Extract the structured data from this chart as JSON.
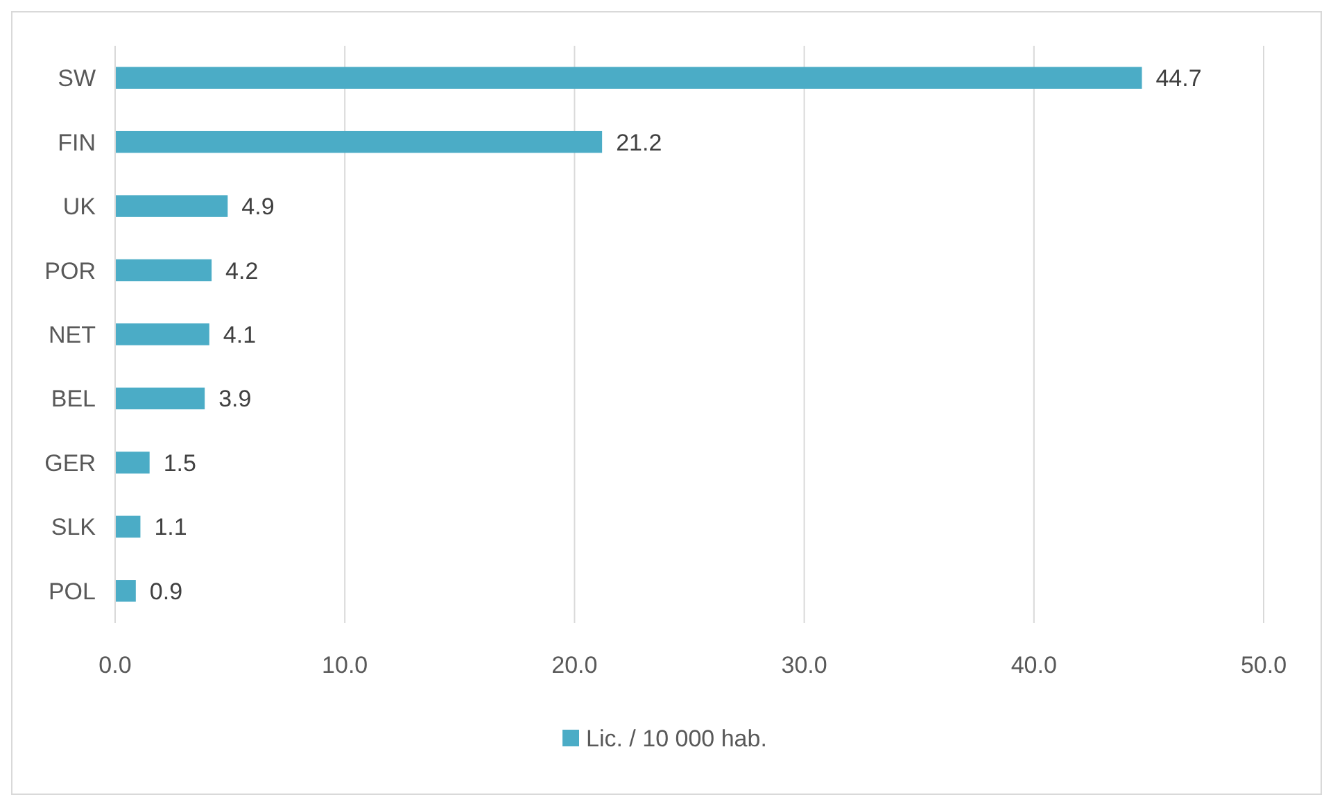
{
  "chart_data": {
    "type": "bar",
    "orientation": "horizontal",
    "categories": [
      "SW",
      "FIN",
      "UK",
      "POR",
      "NET",
      "BEL",
      "GER",
      "SLK",
      "POL"
    ],
    "series": [
      {
        "name": "Lic. / 10 000 hab.",
        "color": "#4bacc6",
        "values": [
          44.7,
          21.2,
          4.9,
          4.2,
          4.1,
          3.9,
          1.5,
          1.1,
          0.9
        ]
      }
    ],
    "xlim": [
      0,
      50
    ],
    "xticks": [
      {
        "value": 0,
        "label": "0.0"
      },
      {
        "value": 10,
        "label": "10.0"
      },
      {
        "value": 20,
        "label": "20.0"
      },
      {
        "value": 30,
        "label": "30.0"
      },
      {
        "value": 40,
        "label": "40.0"
      },
      {
        "value": 50,
        "label": "50.0"
      }
    ],
    "grid": "x",
    "legend": "bottom",
    "data_labels": true
  }
}
